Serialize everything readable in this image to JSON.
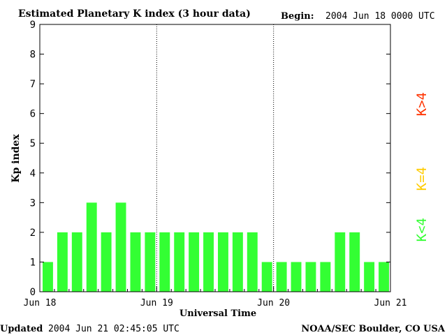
{
  "header": {
    "title": "Estimated Planetary K index (3 hour data)",
    "begin_label": "Begin:",
    "begin_value": "2004 Jun 18 0000 UTC"
  },
  "footer": {
    "updated_label": "Updated",
    "updated_value": "2004 Jun 21 02:45:05 UTC",
    "source": "NOAA/SEC Boulder, CO USA"
  },
  "legend": [
    {
      "label": "K>4",
      "color": "#ff3300"
    },
    {
      "label": "K=4",
      "color": "#ffcc00"
    },
    {
      "label": "K<4",
      "color": "#33ff33"
    }
  ],
  "chart_data": {
    "type": "bar",
    "xlabel": "Universal Time",
    "ylabel": "Kp index",
    "ylim": [
      0,
      9
    ],
    "yticks": [
      "0",
      "1",
      "2",
      "3",
      "4",
      "5",
      "6",
      "7",
      "8",
      "9"
    ],
    "day_labels": [
      "Jun 18",
      "Jun 19",
      "Jun 20",
      "Jun 21"
    ],
    "bar_interval": "3 hour",
    "values": [
      1,
      2,
      2,
      3,
      2,
      3,
      2,
      2,
      2,
      2,
      2,
      2,
      2,
      2,
      2,
      1,
      1,
      1,
      1,
      1,
      2,
      2,
      1,
      1
    ],
    "bar_color": "#33ff33",
    "day_separators": "dotted"
  }
}
